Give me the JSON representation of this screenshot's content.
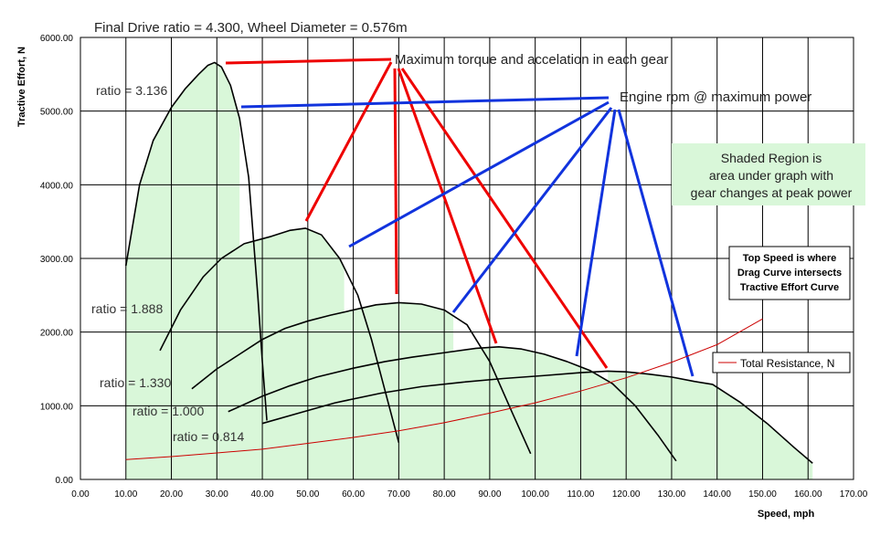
{
  "chart_data": {
    "type": "line",
    "title": "Final Drive ratio = 4.300, Wheel Diameter = 0.576m",
    "xlabel": "Speed, mph",
    "ylabel": "Tractive Effort, N",
    "xlim": [
      0,
      170
    ],
    "ylim": [
      0,
      6000
    ],
    "x_ticks": [
      "0.00",
      "10.00",
      "20.00",
      "30.00",
      "40.00",
      "50.00",
      "60.00",
      "70.00",
      "80.00",
      "90.00",
      "100.00",
      "110.00",
      "120.00",
      "130.00",
      "140.00",
      "150.00",
      "160.00",
      "170.00"
    ],
    "y_ticks": [
      "0.00",
      "1000.00",
      "2000.00",
      "3000.00",
      "4000.00",
      "5000.00",
      "6000.00"
    ],
    "grid": true,
    "series": [
      {
        "name": "ratio = 3.136",
        "x": [
          10,
          13,
          16,
          20,
          23,
          26,
          28,
          29.5,
          31,
          33,
          35,
          37,
          38,
          39,
          40,
          41
        ],
        "y": [
          2900,
          4000,
          4600,
          5050,
          5300,
          5500,
          5620,
          5660,
          5600,
          5350,
          4900,
          4100,
          3300,
          2500,
          1600,
          800
        ]
      },
      {
        "name": "ratio = 1.888",
        "x": [
          17.5,
          22,
          27,
          31,
          36,
          42,
          46,
          49.5,
          53,
          57,
          61,
          64,
          67,
          70
        ],
        "y": [
          1750,
          2300,
          2750,
          3000,
          3200,
          3300,
          3380,
          3410,
          3320,
          3000,
          2500,
          1900,
          1200,
          500
        ]
      },
      {
        "name": "ratio = 1.330",
        "x": [
          24.5,
          30,
          35,
          40,
          45,
          50,
          55,
          60,
          65,
          70,
          75,
          80,
          85,
          90,
          95,
          99
        ],
        "y": [
          1230,
          1500,
          1700,
          1900,
          2050,
          2150,
          2230,
          2300,
          2370,
          2400,
          2380,
          2300,
          2100,
          1600,
          900,
          350
        ]
      },
      {
        "name": "ratio = 1.000",
        "x": [
          32.5,
          40,
          46,
          52,
          60,
          67,
          73,
          80,
          87,
          92,
          97,
          102,
          107,
          112,
          117,
          122,
          127,
          131
        ],
        "y": [
          920,
          1130,
          1270,
          1390,
          1510,
          1600,
          1660,
          1720,
          1780,
          1800,
          1770,
          1700,
          1600,
          1480,
          1300,
          1000,
          600,
          250
        ]
      },
      {
        "name": "ratio = 0.814",
        "x": [
          40,
          48,
          56,
          66,
          75,
          84,
          93,
          102,
          110,
          116,
          120,
          125,
          130,
          135,
          139,
          145,
          151,
          157,
          161
        ],
        "y": [
          760,
          900,
          1040,
          1170,
          1260,
          1320,
          1370,
          1410,
          1450,
          1470,
          1460,
          1430,
          1390,
          1330,
          1290,
          1050,
          760,
          430,
          220
        ]
      },
      {
        "name": "Total Resistance, N",
        "x": [
          10,
          20,
          30,
          40,
          50,
          60,
          70,
          80,
          90,
          100,
          110,
          120,
          130,
          140,
          150
        ],
        "y": [
          270,
          310,
          360,
          410,
          490,
          570,
          660,
          770,
          900,
          1040,
          1200,
          1380,
          1590,
          1830,
          2180
        ]
      }
    ],
    "annotations": [
      "Maximum torque and accelation in each gear",
      "Engine rpm @ maximum power",
      "Shaded Region is",
      "area under graph with",
      "gear changes at peak power",
      "Top Speed is where",
      "Drag Curve intersects",
      "Tractive Effort Curve"
    ],
    "legend_placement": "right"
  },
  "colors": {
    "gear_curve": "#000000",
    "resistance": "#cc0000",
    "torque_pointer": "#ee0000",
    "power_pointer": "#1133dd",
    "shade": "#d9f7d9",
    "grid": "#000000"
  }
}
